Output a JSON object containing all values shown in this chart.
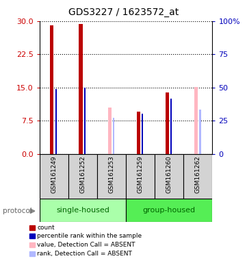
{
  "title": "GDS3227 / 1623572_at",
  "samples": [
    "GSM161249",
    "GSM161252",
    "GSM161253",
    "GSM161259",
    "GSM161260",
    "GSM161262"
  ],
  "count_values": [
    29.0,
    29.3,
    null,
    9.5,
    13.8,
    null
  ],
  "percentile_values": [
    14.7,
    15.0,
    null,
    9.1,
    12.4,
    null
  ],
  "absent_value_values": [
    null,
    null,
    10.5,
    null,
    null,
    15.1
  ],
  "absent_rank_values": [
    null,
    null,
    8.2,
    null,
    null,
    10.0
  ],
  "ylim_left": [
    0,
    30
  ],
  "ylim_right": [
    0,
    100
  ],
  "yticks_left": [
    0,
    7.5,
    15,
    22.5,
    30
  ],
  "yticks_right": [
    0,
    25,
    50,
    75,
    100
  ],
  "left_tick_color": "#CC0000",
  "right_tick_color": "#0000BB",
  "count_color": "#BB0000",
  "percentile_color": "#0000BB",
  "absent_value_color": "#FFB6C1",
  "absent_rank_color": "#B0B8FF",
  "single_housed_color": "#AAFFAA",
  "group_housed_color": "#55EE55",
  "sample_bg_color": "#D3D3D3",
  "legend_items": [
    {
      "label": "count",
      "color": "#BB0000"
    },
    {
      "label": "percentile rank within the sample",
      "color": "#0000BB"
    },
    {
      "label": "value, Detection Call = ABSENT",
      "color": "#FFB6C1"
    },
    {
      "label": "rank, Detection Call = ABSENT",
      "color": "#B0B8FF"
    }
  ]
}
